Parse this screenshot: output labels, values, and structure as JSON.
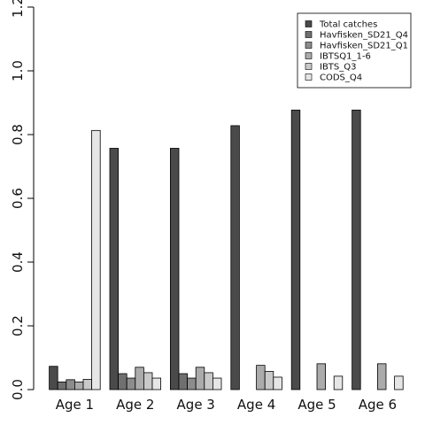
{
  "chart_data": {
    "type": "bar",
    "title": "",
    "xlabel": "",
    "ylabel": "",
    "ylim": [
      0,
      1.2
    ],
    "yticks": [
      "0.0",
      "0.2",
      "0.4",
      "0.6",
      "0.8",
      "1.0",
      "1.2"
    ],
    "ytick_values": [
      0,
      0.2,
      0.4,
      0.6,
      0.8,
      1.0,
      1.2
    ],
    "categories": [
      "Age 1",
      "Age 2",
      "Age 3",
      "Age 4",
      "Age 5",
      "Age 6"
    ],
    "grid": false,
    "legend_position": "top-right",
    "series": [
      {
        "name": "Total catches",
        "color": "#4a4a4a",
        "values": [
          0.073,
          0.757,
          0.757,
          0.828,
          0.877,
          0.877
        ]
      },
      {
        "name": "Havfisken_SD21_Q4",
        "color": "#707070",
        "values": [
          0.024,
          0.05,
          0.05,
          0,
          0,
          0
        ]
      },
      {
        "name": "Havfisken_SD21_Q1",
        "color": "#8c8c8c",
        "values": [
          0.031,
          0.036,
          0.036,
          0,
          0,
          0
        ]
      },
      {
        "name": "IBTSQ1_1-6",
        "color": "#ababab",
        "values": [
          0.024,
          0.07,
          0.07,
          0.076,
          0.081,
          0.081
        ]
      },
      {
        "name": "IBTS_Q3",
        "color": "#c9c9c9",
        "values": [
          0.032,
          0.053,
          0.053,
          0.057,
          0,
          0
        ]
      },
      {
        "name": "CODS_Q4",
        "color": "#e6e6e6",
        "values": [
          0.813,
          0.036,
          0.036,
          0.039,
          0.042,
          0.042
        ]
      }
    ]
  }
}
